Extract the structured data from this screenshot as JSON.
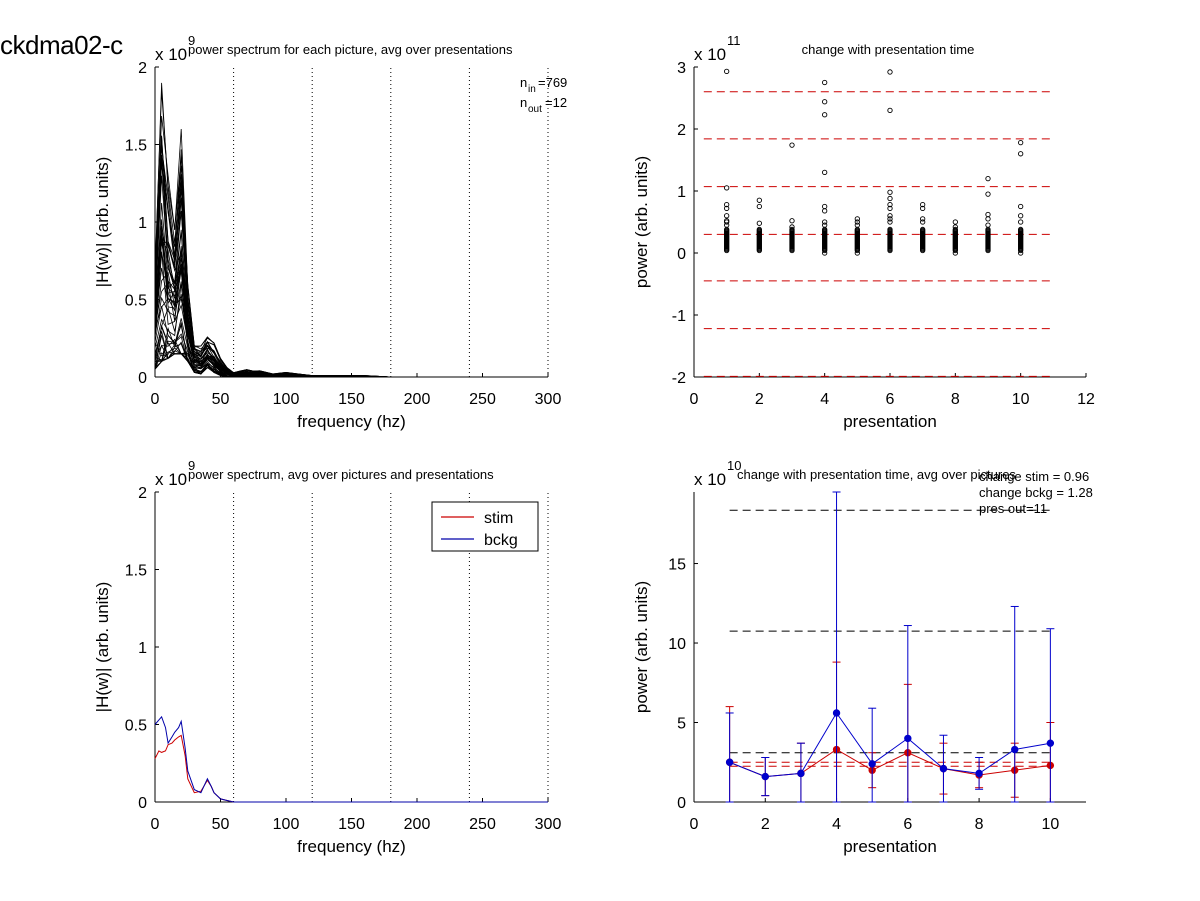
{
  "figure_id": "ckdma02-c",
  "chart_data": [
    {
      "type": "line",
      "title": "power spectrum for each picture, avg over presentations",
      "xlabel": "frequency (hz)",
      "ylabel": "|H(w)| (arb. units)",
      "exponent": "x 10",
      "exponent_power": "9",
      "xlim": [
        0,
        300
      ],
      "ylim": [
        0,
        2
      ],
      "xticks": [
        "0",
        "50",
        "100",
        "150",
        "200",
        "250",
        "300"
      ],
      "yticks": [
        "0",
        "0.5",
        "1",
        "1.5",
        "2"
      ],
      "vlines": [
        60,
        120,
        180,
        240,
        300
      ],
      "annotations": [
        {
          "base": "n",
          "sub": "in",
          "value": "=769"
        },
        {
          "base": "n",
          "sub": "out",
          "value": "=12"
        }
      ],
      "x": [
        0,
        5,
        10,
        15,
        20,
        25,
        30,
        35,
        40,
        45,
        50,
        55,
        60,
        65,
        70,
        75,
        80,
        90,
        100,
        110,
        120,
        130,
        140,
        160,
        180,
        200,
        250,
        300
      ],
      "envelope": {
        "upper": [
          0.7,
          1.93,
          1.3,
          0.95,
          1.6,
          0.62,
          0.22,
          0.2,
          0.27,
          0.22,
          0.12,
          0.06,
          0.03,
          0.04,
          0.05,
          0.04,
          0.04,
          0.02,
          0.03,
          0.02,
          0.01,
          0.01,
          0.01,
          0.01,
          0.0,
          0.0,
          0.0,
          0.0
        ],
        "lower": [
          0.05,
          0.1,
          0.12,
          0.15,
          0.15,
          0.1,
          0.03,
          0.02,
          0.06,
          0.03,
          0.01,
          0.0,
          0.0,
          0.0,
          0.0,
          0.0,
          0.0,
          0.0,
          0.0,
          0.0,
          0.0,
          0.0,
          0.0,
          0.0,
          0.0,
          0.0,
          0.0,
          0.0
        ]
      },
      "series_count": 50,
      "color": "#000000"
    },
    {
      "type": "scatter",
      "title": "change with presentation time",
      "xlabel": "presentation",
      "ylabel": "power (arb. units)",
      "exponent": "x 10",
      "exponent_power": "11",
      "xlim": [
        0,
        12
      ],
      "ylim": [
        -2,
        3
      ],
      "xticks": [
        "0",
        "2",
        "4",
        "6",
        "8",
        "10",
        "12"
      ],
      "yticks": [
        "-2",
        "-1",
        "0",
        "1",
        "2",
        "3"
      ],
      "hlines": [
        2.6,
        1.84,
        1.07,
        0.3,
        -0.45,
        -1.22,
        -1.99
      ],
      "hline_color": "#cc0000",
      "outliers": [
        {
          "x": 1,
          "ys": [
            2.93,
            1.05,
            0.78,
            0.72,
            0.6,
            0.52,
            0.5,
            0.45
          ]
        },
        {
          "x": 2,
          "ys": [
            0.85,
            0.75,
            0.48
          ]
        },
        {
          "x": 3,
          "ys": [
            1.74,
            0.52,
            0.42
          ]
        },
        {
          "x": 4,
          "ys": [
            2.75,
            2.44,
            2.23,
            1.3,
            0.75,
            0.68,
            0.5,
            0.45,
            0.0
          ]
        },
        {
          "x": 5,
          "ys": [
            0.55,
            0.5,
            0.45,
            0.0
          ]
        },
        {
          "x": 6,
          "ys": [
            2.92,
            2.3,
            0.98,
            0.88,
            0.78,
            0.72,
            0.6,
            0.55,
            0.5
          ]
        },
        {
          "x": 7,
          "ys": [
            0.78,
            0.72,
            0.55,
            0.5
          ]
        },
        {
          "x": 8,
          "ys": [
            0.5,
            0.42,
            0.0
          ]
        },
        {
          "x": 9,
          "ys": [
            1.2,
            0.95,
            0.62,
            0.55,
            0.45
          ]
        },
        {
          "x": 10,
          "ys": [
            1.78,
            1.6,
            0.75,
            0.6,
            0.5,
            0.0
          ]
        }
      ],
      "cluster_range": [
        0.04,
        0.38
      ]
    },
    {
      "type": "line",
      "title": "power spectrum, avg over pictures and presentations",
      "xlabel": "frequency (hz)",
      "ylabel": "|H(w)| (arb. units)",
      "exponent": "x 10",
      "exponent_power": "9",
      "xlim": [
        0,
        300
      ],
      "ylim": [
        0,
        2
      ],
      "xticks": [
        "0",
        "50",
        "100",
        "150",
        "200",
        "250",
        "300"
      ],
      "yticks": [
        "0",
        "0.5",
        "1",
        "1.5",
        "2"
      ],
      "vlines": [
        60,
        120,
        180,
        240,
        300
      ],
      "legend_position": "top-right",
      "x": [
        0,
        3,
        5,
        8,
        10,
        13,
        15,
        18,
        20,
        23,
        25,
        30,
        35,
        40,
        43,
        45,
        50,
        55,
        60,
        70,
        80,
        100,
        150,
        200,
        250,
        300
      ],
      "series": [
        {
          "name": "stim",
          "color": "#cc0000",
          "values": [
            0.28,
            0.33,
            0.32,
            0.33,
            0.37,
            0.38,
            0.4,
            0.42,
            0.43,
            0.3,
            0.15,
            0.06,
            0.07,
            0.14,
            0.1,
            0.06,
            0.02,
            0.01,
            0.0,
            0.0,
            0.0,
            0.0,
            0.0,
            0.0,
            0.0,
            0.0
          ]
        },
        {
          "name": "bckg",
          "color": "#0000aa",
          "values": [
            0.5,
            0.53,
            0.55,
            0.48,
            0.38,
            0.42,
            0.45,
            0.48,
            0.52,
            0.35,
            0.2,
            0.08,
            0.06,
            0.15,
            0.1,
            0.06,
            0.02,
            0.01,
            0.0,
            0.0,
            0.0,
            0.0,
            0.0,
            0.0,
            0.0,
            0.0
          ]
        }
      ]
    },
    {
      "type": "line",
      "title": "change with presentation time, avg over pictures",
      "xlabel": "presentation",
      "ylabel": "power (arb. units)",
      "exponent": "x 10",
      "exponent_power": "10",
      "xlim": [
        0,
        11
      ],
      "ylim": [
        0,
        19.5
      ],
      "xticks": [
        "0",
        "2",
        "4",
        "6",
        "8",
        "10"
      ],
      "yticks": [
        "0",
        "5",
        "10",
        "15"
      ],
      "stats": [
        "change stim = 0.96",
        "change bckg = 1.28",
        "pres out=11"
      ],
      "x": [
        1,
        2,
        3,
        4,
        5,
        6,
        7,
        8,
        9,
        10
      ],
      "series": [
        {
          "name": "stim",
          "color": "#cc0000",
          "values": [
            2.5,
            1.6,
            1.8,
            3.3,
            2.0,
            3.1,
            2.1,
            1.7,
            2.0,
            2.3
          ],
          "error": [
            3.5,
            1.2,
            1.9,
            5.5,
            1.1,
            4.3,
            1.6,
            0.8,
            1.7,
            2.7
          ],
          "hlines": [
            2.25,
            2.5
          ]
        },
        {
          "name": "bckg",
          "color": "#0000cc",
          "values": [
            2.5,
            1.6,
            1.8,
            5.6,
            2.4,
            4.0,
            2.1,
            1.8,
            3.3,
            3.7
          ],
          "error": [
            3.1,
            1.2,
            1.9,
            13.9,
            3.5,
            7.1,
            2.1,
            1.0,
            9.0,
            7.2
          ],
          "hlines": [
            3.1,
            10.75,
            18.35
          ]
        }
      ]
    }
  ]
}
